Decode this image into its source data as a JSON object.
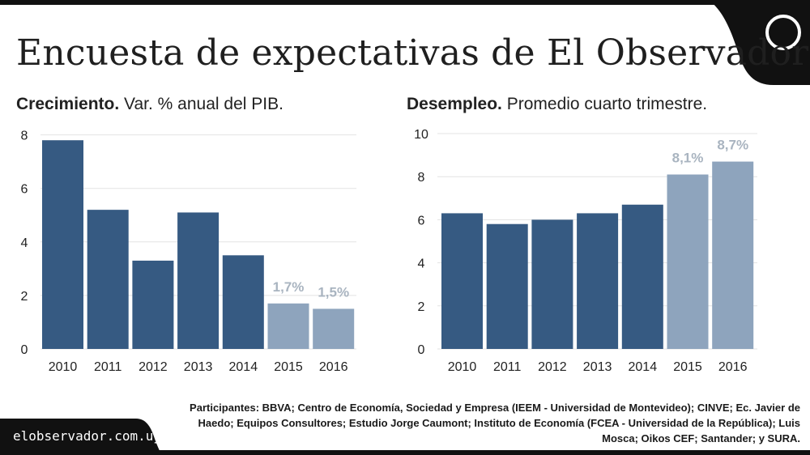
{
  "title": "Encuesta de expectativas de El Observador",
  "source_site": "elobservador.com.uy",
  "participants_note": "Participantes: BBVA; Centro de Economía, Sociedad y Empresa (IEEM - Universidad de Montevideo); CINVE; Ec. Javier de Haedo; Equipos Consultores; Estudio Jorge Caumont; Instituto de Economía (FCEA - Universidad de la República); Luis Mosca; Oikos CEF; Santander; y SURA.",
  "colors": {
    "actual": "#365a82",
    "forecast": "#8ea4bd",
    "label": "#a9b4c0"
  },
  "chart_data": [
    {
      "type": "bar",
      "title_bold": "Crecimiento.",
      "title_rest": " Var. % anual del PIB.",
      "categories": [
        "2010",
        "2011",
        "2012",
        "2013",
        "2014",
        "2015",
        "2016"
      ],
      "values": [
        7.8,
        5.2,
        3.3,
        5.1,
        3.5,
        1.7,
        1.5
      ],
      "forecast": [
        false,
        false,
        false,
        false,
        false,
        true,
        true
      ],
      "data_labels": [
        "",
        "",
        "",
        "",
        "",
        "1,7%",
        "1,5%"
      ],
      "yticks": [
        0,
        2,
        4,
        6,
        8
      ],
      "ylim": [
        0,
        8.2
      ]
    },
    {
      "type": "bar",
      "title_bold": "Desempleo.",
      "title_rest": " Promedio cuarto trimestre.",
      "categories": [
        "2010",
        "2011",
        "2012",
        "2013",
        "2014",
        "2015",
        "2016"
      ],
      "values": [
        6.3,
        5.8,
        6.0,
        6.3,
        6.7,
        8.1,
        8.7
      ],
      "forecast": [
        false,
        false,
        false,
        false,
        false,
        true,
        true
      ],
      "data_labels": [
        "",
        "",
        "",
        "",
        "",
        "8,1%",
        "8,7%"
      ],
      "yticks": [
        0,
        2,
        4,
        6,
        8,
        10
      ],
      "ylim": [
        0,
        10
      ]
    }
  ]
}
